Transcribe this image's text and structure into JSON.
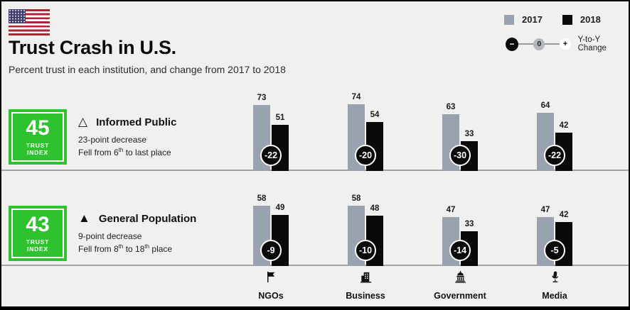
{
  "colors": {
    "background": "#f0f0ee",
    "green": "#2fc22f",
    "bar_2017": "#99a2ae",
    "bar_2018": "#0a0a0a",
    "divider": "#a3a3a3"
  },
  "header": {
    "title": "Trust Crash in U.S.",
    "subtitle": "Percent trust in each institution, and change from 2017 to 2018"
  },
  "legend": {
    "year_2017": "2017",
    "year_2018": "2018",
    "minus": "−",
    "zero": "0",
    "plus": "+",
    "change_label": "Y-to-Y Change"
  },
  "rows": [
    {
      "trust_index": "45",
      "trust_word1": "TRUST",
      "trust_word2": "INDEX",
      "triangle": "△",
      "title": "Informed Public",
      "line1": "23-point decrease",
      "line2": {
        "p1": "Fell from 6",
        "s1": "th",
        "p2": " to last place",
        "s2": "",
        "p3": ""
      }
    },
    {
      "trust_index": "43",
      "trust_word1": "TRUST",
      "trust_word2": "INDEX",
      "triangle": "▲",
      "title": "General Population",
      "line1": "9-point decrease",
      "line2": {
        "p1": "Fell from 8",
        "s1": "th",
        "p2": " to 18",
        "s2": "th",
        "p3": " place"
      }
    }
  ],
  "chart_data": {
    "type": "bar",
    "categories": [
      "NGOs",
      "Business",
      "Government",
      "Media"
    ],
    "rows": [
      {
        "group": "Informed Public",
        "trust_index": 45,
        "series": [
          {
            "name": "2017",
            "values": [
              73,
              74,
              63,
              64
            ]
          },
          {
            "name": "2018",
            "values": [
              51,
              54,
              33,
              42
            ]
          }
        ],
        "change": [
          -22,
          -20,
          -30,
          -22
        ]
      },
      {
        "group": "General Population",
        "trust_index": 43,
        "series": [
          {
            "name": "2017",
            "values": [
              58,
              58,
              47,
              47
            ]
          },
          {
            "name": "2018",
            "values": [
              49,
              48,
              33,
              42
            ]
          }
        ],
        "change": [
          -9,
          -10,
          -14,
          -5
        ]
      }
    ],
    "ylim": [
      0,
      100
    ],
    "grid": false,
    "legend_position": "top-right"
  }
}
